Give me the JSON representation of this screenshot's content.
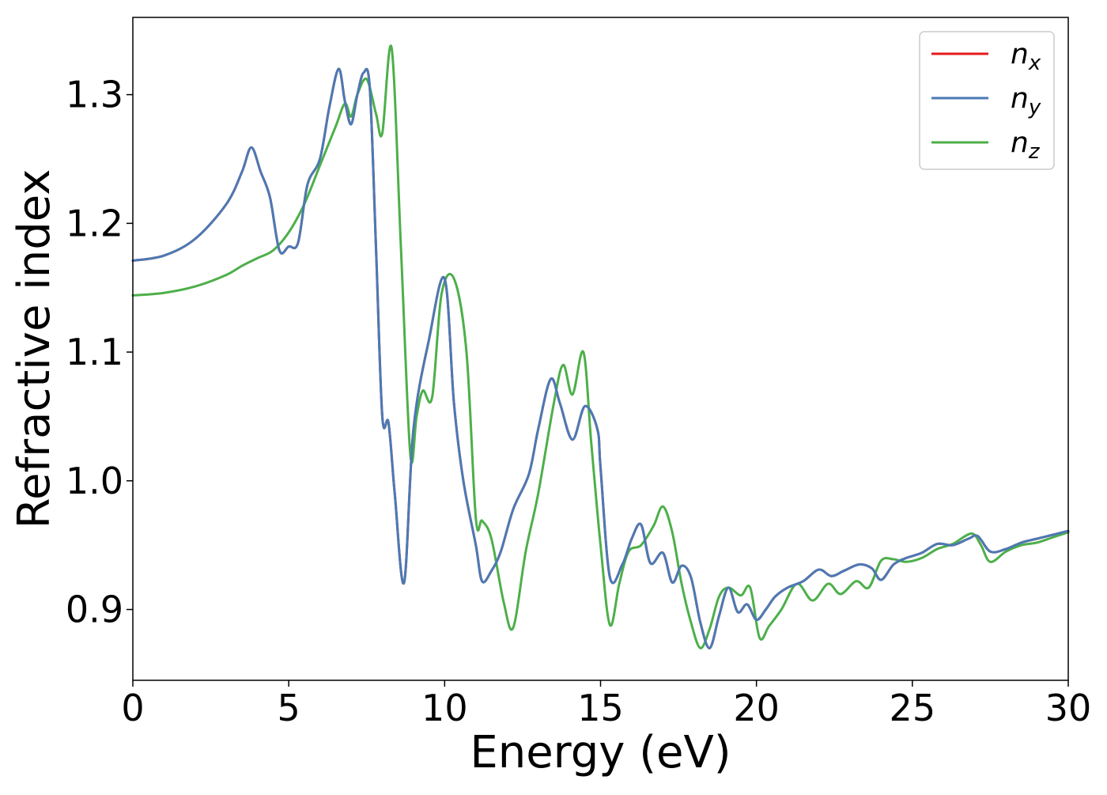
{
  "chart_data": {
    "type": "line",
    "title": "",
    "xlabel": "Energy (eV)",
    "ylabel": "Refractive index",
    "xlim": [
      0,
      30
    ],
    "ylim": [
      0.845,
      1.36
    ],
    "xticks": [
      0,
      5,
      10,
      15,
      20,
      25,
      30
    ],
    "xtick_labels": [
      "0",
      "5",
      "10",
      "15",
      "20",
      "25",
      "30"
    ],
    "yticks": [
      0.9,
      1.0,
      1.1,
      1.2,
      1.3
    ],
    "ytick_labels": [
      "0.9",
      "1.0",
      "1.1",
      "1.2",
      "1.3"
    ],
    "grid": false,
    "legend_position": "top-right",
    "series": [
      {
        "name": "n_x",
        "label_main": "n",
        "label_sub": "x",
        "color": "#e41a1c",
        "x": [
          0,
          1,
          2,
          3,
          3.5,
          3.8,
          4.1,
          4.4,
          4.7,
          5.0,
          5.3,
          5.6,
          6.0,
          6.3,
          6.6,
          6.8,
          7.0,
          7.2,
          7.4,
          7.6,
          7.8,
          8.0,
          8.2,
          8.4,
          8.7,
          9.0,
          9.5,
          10.0,
          10.3,
          10.6,
          11.0,
          11.2,
          11.5,
          11.8,
          12.2,
          12.7,
          13.0,
          13.4,
          13.7,
          14.1,
          14.5,
          14.9,
          15.0,
          15.3,
          15.7,
          16.0,
          16.3,
          16.6,
          17.0,
          17.3,
          17.6,
          17.9,
          18.2,
          18.5,
          18.8,
          19.1,
          19.4,
          19.7,
          20.0,
          20.3,
          20.6,
          21.0,
          21.5,
          22.0,
          22.4,
          22.8,
          23.3,
          23.7,
          24.0,
          24.4,
          24.8,
          25.3,
          25.8,
          26.3,
          26.8,
          27.1,
          27.5,
          28.0,
          28.5,
          29.0,
          29.5,
          30.0
        ],
        "y": [
          1.171,
          1.175,
          1.188,
          1.215,
          1.24,
          1.259,
          1.24,
          1.22,
          1.179,
          1.182,
          1.185,
          1.23,
          1.25,
          1.29,
          1.32,
          1.295,
          1.277,
          1.3,
          1.317,
          1.305,
          1.18,
          1.05,
          1.045,
          0.99,
          0.921,
          1.04,
          1.11,
          1.157,
          1.06,
          1.0,
          0.95,
          0.922,
          0.93,
          0.945,
          0.978,
          1.005,
          1.04,
          1.079,
          1.06,
          1.032,
          1.058,
          1.04,
          1.01,
          0.925,
          0.935,
          0.955,
          0.966,
          0.936,
          0.944,
          0.921,
          0.934,
          0.925,
          0.89,
          0.87,
          0.895,
          0.917,
          0.898,
          0.904,
          0.892,
          0.9,
          0.91,
          0.917,
          0.922,
          0.931,
          0.926,
          0.93,
          0.935,
          0.932,
          0.923,
          0.935,
          0.94,
          0.944,
          0.951,
          0.95,
          0.955,
          0.957,
          0.945,
          0.947,
          0.952,
          0.955,
          0.958,
          0.961
        ]
      },
      {
        "name": "n_y",
        "label_main": "n",
        "label_sub": "y",
        "color": "#4a7ab5",
        "x": [
          0,
          1,
          2,
          3,
          3.5,
          3.8,
          4.1,
          4.4,
          4.7,
          5.0,
          5.3,
          5.6,
          6.0,
          6.3,
          6.6,
          6.8,
          7.0,
          7.2,
          7.4,
          7.6,
          7.8,
          8.0,
          8.2,
          8.4,
          8.7,
          9.0,
          9.5,
          10.0,
          10.3,
          10.6,
          11.0,
          11.2,
          11.5,
          11.8,
          12.2,
          12.7,
          13.0,
          13.4,
          13.7,
          14.1,
          14.5,
          14.9,
          15.0,
          15.3,
          15.7,
          16.0,
          16.3,
          16.6,
          17.0,
          17.3,
          17.6,
          17.9,
          18.2,
          18.5,
          18.8,
          19.1,
          19.4,
          19.7,
          20.0,
          20.3,
          20.6,
          21.0,
          21.5,
          22.0,
          22.4,
          22.8,
          23.3,
          23.7,
          24.0,
          24.4,
          24.8,
          25.3,
          25.8,
          26.3,
          26.8,
          27.1,
          27.5,
          28.0,
          28.5,
          29.0,
          29.5,
          30.0
        ],
        "y": [
          1.171,
          1.175,
          1.188,
          1.215,
          1.24,
          1.259,
          1.24,
          1.22,
          1.179,
          1.182,
          1.185,
          1.23,
          1.25,
          1.29,
          1.32,
          1.295,
          1.277,
          1.3,
          1.317,
          1.305,
          1.18,
          1.05,
          1.045,
          0.99,
          0.921,
          1.04,
          1.11,
          1.157,
          1.06,
          1.0,
          0.95,
          0.922,
          0.93,
          0.945,
          0.978,
          1.005,
          1.04,
          1.079,
          1.06,
          1.032,
          1.058,
          1.04,
          1.01,
          0.925,
          0.935,
          0.955,
          0.966,
          0.936,
          0.944,
          0.921,
          0.934,
          0.925,
          0.89,
          0.87,
          0.895,
          0.917,
          0.898,
          0.904,
          0.892,
          0.9,
          0.91,
          0.917,
          0.922,
          0.931,
          0.926,
          0.93,
          0.935,
          0.932,
          0.923,
          0.935,
          0.94,
          0.944,
          0.951,
          0.95,
          0.955,
          0.957,
          0.945,
          0.947,
          0.952,
          0.955,
          0.958,
          0.961
        ]
      },
      {
        "name": "n_z",
        "label_main": "n",
        "label_sub": "z",
        "color": "#4daf4a",
        "x": [
          0,
          1,
          2,
          3,
          3.5,
          4.0,
          4.5,
          5.0,
          5.5,
          6.0,
          6.5,
          6.8,
          7.0,
          7.2,
          7.5,
          7.8,
          8.0,
          8.3,
          8.6,
          8.9,
          9.1,
          9.3,
          9.6,
          9.9,
          10.3,
          10.7,
          11.0,
          11.2,
          11.5,
          11.9,
          12.2,
          12.6,
          13.0,
          13.5,
          13.8,
          14.1,
          14.45,
          14.7,
          15.0,
          15.3,
          15.6,
          15.9,
          16.3,
          16.7,
          17.0,
          17.3,
          17.6,
          17.9,
          18.2,
          18.5,
          18.8,
          19.1,
          19.5,
          19.8,
          20.1,
          20.4,
          20.8,
          21.3,
          21.8,
          22.3,
          22.7,
          23.2,
          23.6,
          24.0,
          24.4,
          24.8,
          25.3,
          25.8,
          26.3,
          26.9,
          27.2,
          27.5,
          28.0,
          28.5,
          29.0,
          29.5,
          30.0
        ],
        "y": [
          1.144,
          1.146,
          1.151,
          1.16,
          1.167,
          1.173,
          1.179,
          1.193,
          1.215,
          1.245,
          1.275,
          1.293,
          1.283,
          1.3,
          1.312,
          1.285,
          1.27,
          1.336,
          1.18,
          1.02,
          1.05,
          1.07,
          1.065,
          1.145,
          1.157,
          1.1,
          0.971,
          0.969,
          0.955,
          0.905,
          0.886,
          0.945,
          0.99,
          1.06,
          1.09,
          1.067,
          1.1,
          1.03,
          0.95,
          0.888,
          0.92,
          0.945,
          0.95,
          0.965,
          0.98,
          0.96,
          0.92,
          0.89,
          0.87,
          0.885,
          0.91,
          0.917,
          0.911,
          0.917,
          0.878,
          0.887,
          0.9,
          0.92,
          0.907,
          0.92,
          0.912,
          0.922,
          0.917,
          0.938,
          0.939,
          0.937,
          0.94,
          0.947,
          0.951,
          0.959,
          0.95,
          0.937,
          0.945,
          0.95,
          0.952,
          0.956,
          0.96
        ]
      }
    ]
  }
}
